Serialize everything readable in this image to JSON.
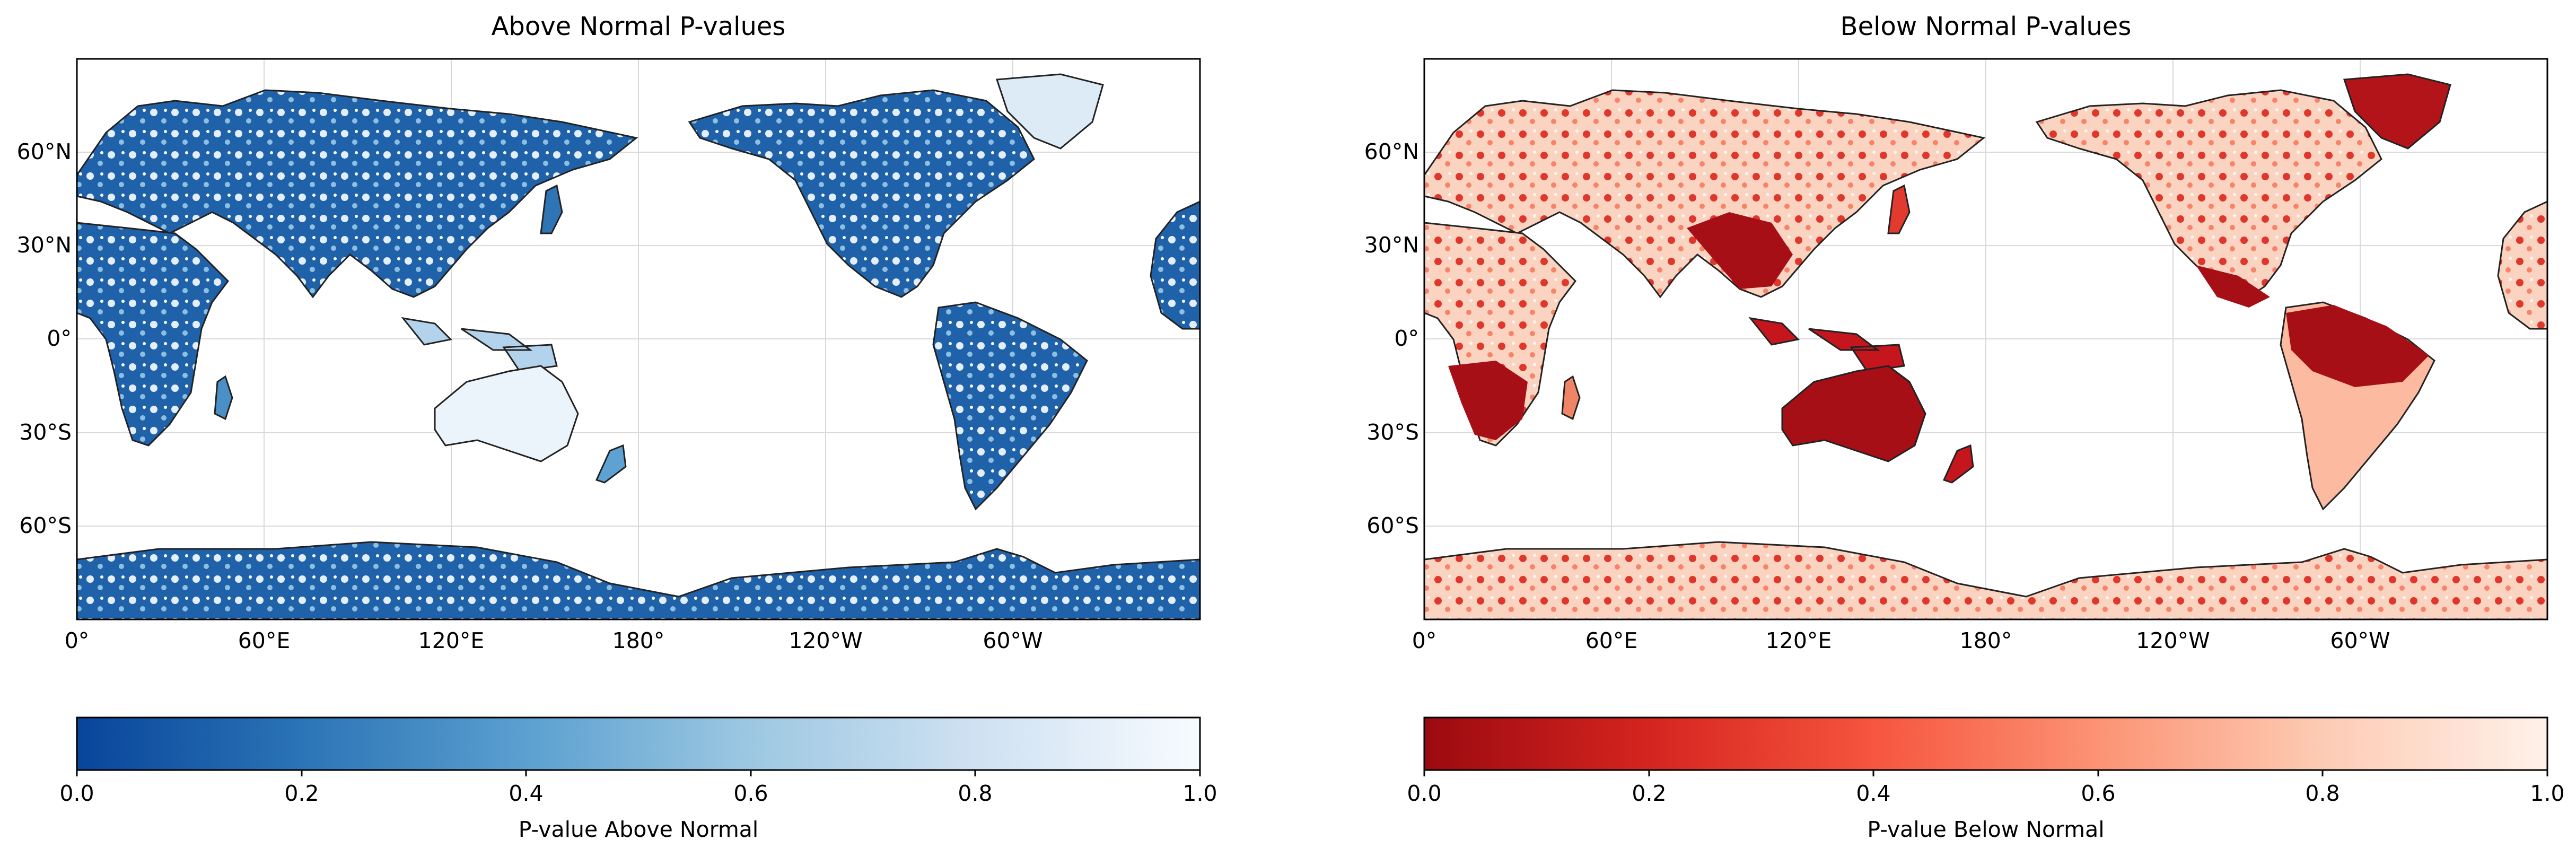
{
  "maps": [
    {
      "title": "Above Normal P-values",
      "colormap": "Blues_r",
      "colorbar_label": "P-value Above Normal",
      "colorbar_ticks": [
        "0.0",
        "0.2",
        "0.4",
        "0.6",
        "0.8",
        "1.0"
      ],
      "colorbar_range": [
        0.0,
        1.0
      ],
      "low_color": "#08459a",
      "mid_color": "#6aaed6",
      "high_color": "#f7fbff",
      "lat_ticks": [
        "60°N",
        "30°N",
        "0°",
        "30°S",
        "60°S"
      ],
      "lon_ticks": [
        "0°",
        "60°E",
        "120°E",
        "180°",
        "120°W",
        "60°W"
      ]
    },
    {
      "title": "Below Normal P-values",
      "colormap": "Reds_r",
      "colorbar_label": "P-value Below Normal",
      "colorbar_ticks": [
        "0.0",
        "0.2",
        "0.4",
        "0.6",
        "0.8",
        "1.0"
      ],
      "colorbar_range": [
        0.0,
        1.0
      ],
      "low_color": "#9b0a10",
      "mid_color": "#f6553f",
      "high_color": "#fff1ea",
      "lat_ticks": [
        "60°N",
        "30°N",
        "0°",
        "30°S",
        "60°S"
      ],
      "lon_ticks": [
        "0°",
        "60°E",
        "120°E",
        "180°",
        "120°W",
        "60°W"
      ]
    }
  ],
  "map_extent": {
    "lon_min": 0,
    "lon_max": 360,
    "lat_min": -90,
    "lat_max": 90,
    "central_longitude": 180
  },
  "gridlines": true,
  "coastlines": true,
  "borders": true
}
